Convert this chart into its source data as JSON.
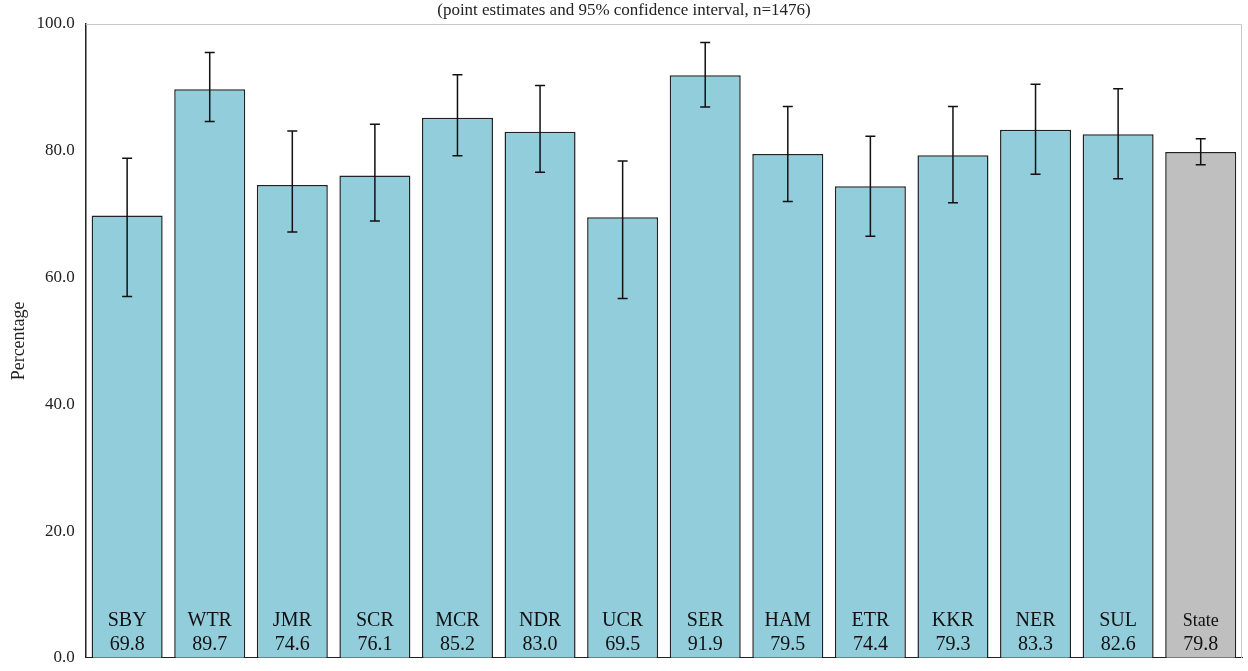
{
  "chart_data": {
    "type": "bar",
    "subtitle": "(point estimates and 95% confidence interval, n=1476)",
    "ylabel": "Percentage",
    "categories": [
      "SBY",
      "WTR",
      "JMR",
      "SCR",
      "MCR",
      "NDR",
      "UCR",
      "SER",
      "HAM",
      "ETR",
      "KKR",
      "NER",
      "SUL",
      "State"
    ],
    "values": [
      69.8,
      89.7,
      74.6,
      76.1,
      85.2,
      83.0,
      69.5,
      91.9,
      79.5,
      74.4,
      79.3,
      83.3,
      82.6,
      79.8
    ],
    "colors": [
      "#92cddc",
      "#92cddc",
      "#92cddc",
      "#92cddc",
      "#92cddc",
      "#92cddc",
      "#92cddc",
      "#92cddc",
      "#92cddc",
      "#92cddc",
      "#92cddc",
      "#92cddc",
      "#92cddc",
      "#bfbfbf"
    ],
    "errors": [
      [
        57.0,
        78.8
      ],
      [
        84.6,
        95.5
      ],
      [
        67.2,
        83.1
      ],
      [
        68.9,
        84.2
      ],
      [
        79.2,
        92.0
      ],
      [
        76.6,
        90.3
      ],
      [
        56.7,
        78.4
      ],
      [
        86.9,
        97.1
      ],
      [
        72.0,
        87.0
      ],
      [
        66.5,
        82.3
      ],
      [
        71.8,
        87.0
      ],
      [
        76.3,
        90.5
      ],
      [
        75.6,
        89.8
      ],
      [
        77.8,
        81.9
      ]
    ],
    "ylim": [
      0,
      100
    ],
    "yticks": [
      {
        "value": 0,
        "label": "0.0"
      },
      {
        "value": 20,
        "label": "20.0"
      },
      {
        "value": 40,
        "label": "40.0"
      },
      {
        "value": 60,
        "label": "60.0"
      },
      {
        "value": 80,
        "label": "80.0"
      },
      {
        "value": 100,
        "label": "100.0"
      }
    ],
    "value_labels": [
      "69.8",
      "89.7",
      "74.6",
      "76.1",
      "85.2",
      "83.0",
      "69.5",
      "91.9",
      "79.5",
      "74.4",
      "79.3",
      "83.3",
      "82.6",
      "79.8"
    ],
    "grid": false,
    "legend": false
  }
}
